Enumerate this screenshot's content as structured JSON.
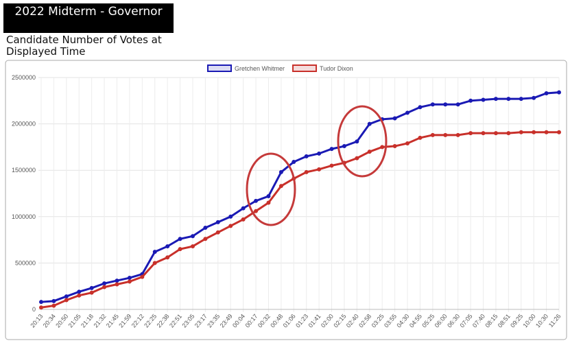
{
  "chart_data": {
    "type": "line",
    "title": "2022 Midterm - Governor",
    "subtitle": "Candidate Number of Votes at Displayed Time",
    "categories": [
      "20:13",
      "20:34",
      "20:50",
      "21:05",
      "21:18",
      "21:32",
      "21:45",
      "21:59",
      "22:12",
      "22:25",
      "22:38",
      "22:51",
      "23:05",
      "23:17",
      "23:35",
      "23:49",
      "00:04",
      "00:17",
      "00:32",
      "00:48",
      "01:06",
      "01:23",
      "01:41",
      "02:00",
      "02:15",
      "02:40",
      "02:58",
      "03:25",
      "03:55",
      "04:30",
      "04:55",
      "05:25",
      "06:00",
      "06:30",
      "07:05",
      "07:40",
      "08:15",
      "08:51",
      "09:25",
      "10:00",
      "10:30",
      "11:26"
    ],
    "series": [
      {
        "name": "Gretchen Whitmer",
        "color": "#1a1ab4",
        "values": [
          80000,
          90000,
          140000,
          190000,
          230000,
          280000,
          310000,
          340000,
          380000,
          620000,
          680000,
          760000,
          790000,
          880000,
          940000,
          1000000,
          1090000,
          1170000,
          1220000,
          1480000,
          1590000,
          1650000,
          1680000,
          1730000,
          1760000,
          1810000,
          2000000,
          2050000,
          2060000,
          2120000,
          2180000,
          2210000,
          2210000,
          2210000,
          2250000,
          2260000,
          2270000,
          2270000,
          2270000,
          2280000,
          2330000,
          2340000
        ]
      },
      {
        "name": "Tudor Dixon",
        "color": "#c8302a",
        "values": [
          20000,
          40000,
          100000,
          150000,
          180000,
          240000,
          270000,
          300000,
          350000,
          500000,
          560000,
          650000,
          680000,
          760000,
          830000,
          900000,
          970000,
          1060000,
          1150000,
          1330000,
          1410000,
          1480000,
          1510000,
          1550000,
          1580000,
          1630000,
          1700000,
          1750000,
          1760000,
          1790000,
          1850000,
          1880000,
          1880000,
          1880000,
          1900000,
          1900000,
          1900000,
          1900000,
          1910000,
          1910000,
          1910000,
          1910000
        ]
      }
    ],
    "ylim": [
      0,
      2500000
    ],
    "yticks": [
      0,
      500000,
      1000000,
      1500000,
      2000000,
      2500000
    ],
    "grid": true,
    "legend": "top"
  }
}
